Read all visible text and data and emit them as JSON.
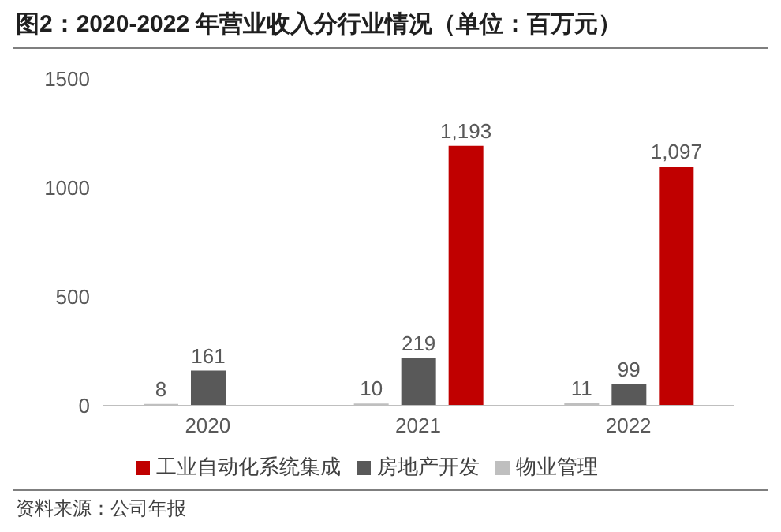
{
  "chart_data": {
    "type": "bar",
    "title": "图2：2020-2022 年营业收入分行业情况（单位：百万元）",
    "categories": [
      "2020",
      "2021",
      "2022"
    ],
    "series": [
      {
        "name": "物业管理",
        "color": "#bfbfbf",
        "values": [
          8,
          10,
          11
        ],
        "value_labels": [
          "8",
          "10",
          "11"
        ]
      },
      {
        "name": "房地产开发",
        "color": "#595959",
        "values": [
          161,
          219,
          99
        ],
        "value_labels": [
          "161",
          "219",
          "99"
        ]
      },
      {
        "name": "工业自动化系统集成",
        "color": "#c00000",
        "values": [
          null,
          1193,
          1097
        ],
        "value_labels": [
          null,
          "1,193",
          "1,097"
        ]
      }
    ],
    "ylim": [
      0,
      1500
    ],
    "yticks": [
      0,
      500,
      1000,
      1500
    ],
    "grid": false,
    "legend": "bottom",
    "annotations": [
      "资料来源：公司年报"
    ]
  }
}
